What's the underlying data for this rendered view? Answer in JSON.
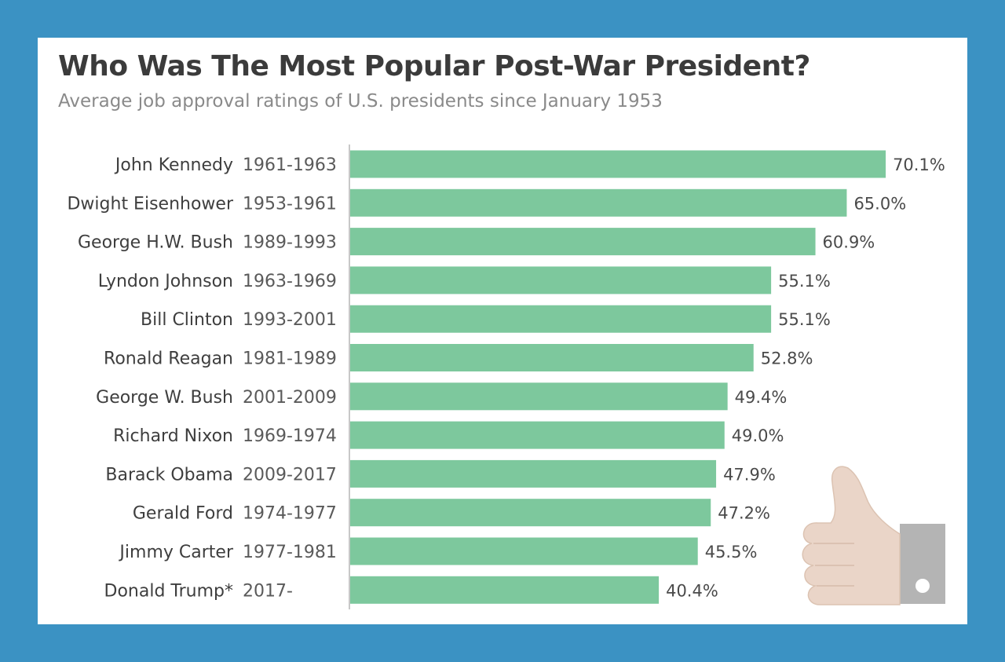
{
  "colors": {
    "background": "#3b92c3",
    "card": "#ffffff",
    "bar": "#7dc89d",
    "axis": "#c8c8c8"
  },
  "decoration": {
    "icon": "thumbs-up-icon"
  },
  "chart_data": {
    "type": "bar",
    "orientation": "horizontal",
    "title": "Who Was The Most Popular Post-War President?",
    "subtitle": "Average job approval ratings of U.S. presidents since January 1953",
    "xlim": [
      0,
      100
    ],
    "grid": false,
    "legend": "none",
    "categories": [
      {
        "name": "John Kennedy",
        "years": "1961-1963"
      },
      {
        "name": "Dwight Eisenhower",
        "years": "1953-1961"
      },
      {
        "name": "George H.W. Bush",
        "years": "1989-1993"
      },
      {
        "name": "Lyndon Johnson",
        "years": "1963-1969"
      },
      {
        "name": "Bill Clinton",
        "years": "1993-2001"
      },
      {
        "name": "Ronald Reagan",
        "years": "1981-1989"
      },
      {
        "name": "George W. Bush",
        "years": "2001-2009"
      },
      {
        "name": "Richard Nixon",
        "years": "1969-1974"
      },
      {
        "name": "Barack Obama",
        "years": "2009-2017"
      },
      {
        "name": "Gerald Ford",
        "years": "1974-1977"
      },
      {
        "name": "Jimmy Carter",
        "years": "1977-1981"
      },
      {
        "name": "Donald Trump*",
        "years": "2017-"
      }
    ],
    "values": [
      70.1,
      65.0,
      60.9,
      55.1,
      55.1,
      52.8,
      49.4,
      49.0,
      47.9,
      47.2,
      45.5,
      40.4
    ],
    "value_labels": [
      "70.1%",
      "65.0%",
      "60.9%",
      "55.1%",
      "55.1%",
      "52.8%",
      "49.4%",
      "49.0%",
      "47.9%",
      "47.2%",
      "45.5%",
      "40.4%"
    ]
  }
}
